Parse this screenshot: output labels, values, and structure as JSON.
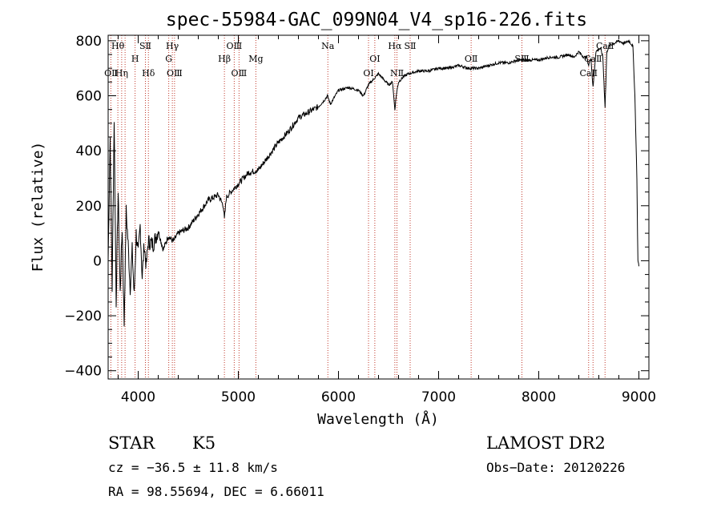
{
  "chart_data": {
    "type": "line",
    "title": "spec-55984-GAC_099N04_V4_sp16-226.fits",
    "xlabel": "Wavelength (Å)",
    "ylabel": "Flux (relative)",
    "xlim": [
      3700,
      9100
    ],
    "ylim": [
      -430,
      820
    ],
    "xticks": [
      4000,
      5000,
      6000,
      7000,
      8000,
      9000
    ],
    "yticks": [
      -400,
      -200,
      0,
      200,
      400,
      600,
      800
    ],
    "ytick_labels": [
      "−400",
      "−200",
      "0",
      "200",
      "400",
      "600",
      "800"
    ],
    "grid": false,
    "series": [
      {
        "x": [
          3700,
          3720,
          3740,
          3760,
          3780,
          3800,
          3820,
          3840,
          3860,
          3880,
          3900,
          3920,
          3940,
          3960,
          3980,
          4000,
          4020,
          4040,
          4060,
          4080,
          4100,
          4150,
          4200,
          4250,
          4300,
          4350,
          4400,
          4500,
          4600,
          4700,
          4800,
          4850,
          4861,
          4880,
          4900,
          5000,
          5100,
          5200,
          5300,
          5400,
          5500,
          5600,
          5700,
          5800,
          5850,
          5890,
          5920,
          6000,
          6100,
          6200,
          6250,
          6300,
          6350,
          6400,
          6450,
          6500,
          6540,
          6563,
          6580,
          6600,
          6650,
          6700,
          6800,
          6900,
          7000,
          7100,
          7200,
          7300,
          7400,
          7500,
          7600,
          7700,
          7800,
          7900,
          8000,
          8100,
          8200,
          8300,
          8350,
          8400,
          8450,
          8480,
          8498,
          8520,
          8542,
          8570,
          8600,
          8620,
          8640,
          8662,
          8680,
          8700,
          8750,
          8800,
          8850,
          8900,
          8940,
          8960,
          8980,
          8990,
          9000
        ],
        "y": [
          0,
          450,
          -100,
          520,
          -150,
          250,
          -120,
          120,
          -230,
          180,
          60,
          -100,
          40,
          -130,
          100,
          20,
          130,
          -60,
          60,
          -20,
          70,
          60,
          110,
          40,
          90,
          70,
          100,
          120,
          170,
          220,
          240,
          200,
          150,
          230,
          240,
          280,
          320,
          330,
          380,
          430,
          470,
          520,
          540,
          560,
          580,
          600,
          570,
          620,
          630,
          620,
          600,
          640,
          660,
          680,
          660,
          640,
          650,
          550,
          610,
          650,
          670,
          680,
          690,
          690,
          700,
          700,
          710,
          700,
          700,
          710,
          720,
          720,
          730,
          730,
          730,
          740,
          740,
          750,
          740,
          760,
          740,
          740,
          710,
          740,
          630,
          760,
          770,
          770,
          740,
          560,
          760,
          780,
          790,
          800,
          790,
          800,
          780,
          600,
          300,
          0,
          -20
        ]
      }
    ],
    "emission_lines": [
      {
        "label": "OⅡ",
        "x": 3727,
        "row": 3,
        "anchor": "middle"
      },
      {
        "label": "Hη",
        "x": 3835,
        "row": 3,
        "anchor": "middle"
      },
      {
        "label": "Hθ",
        "x": 3797,
        "row": 1,
        "anchor": "middle"
      },
      {
        "label": "H",
        "x": 3969,
        "row": 2,
        "anchor": "middle"
      },
      {
        "label": "SⅡ",
        "x": 4072,
        "row": 1,
        "anchor": "middle"
      },
      {
        "label": "Hδ",
        "x": 4102,
        "row": 3,
        "anchor": "middle"
      },
      {
        "label": "Hγ",
        "x": 4341,
        "row": 1,
        "anchor": "middle"
      },
      {
        "label": "G",
        "x": 4305,
        "row": 2,
        "anchor": "middle"
      },
      {
        "label": "OⅢ",
        "x": 4363,
        "row": 3,
        "anchor": "middle"
      },
      {
        "label": "Hβ",
        "x": 4861,
        "row": 2,
        "anchor": "middle"
      },
      {
        "label": "OⅢ",
        "x": 4959,
        "row": 1,
        "anchor": "middle"
      },
      {
        "label": "OⅢ",
        "x": 5007,
        "row": 3,
        "anchor": "middle"
      },
      {
        "label": "Mg",
        "x": 5175,
        "row": 2,
        "anchor": "middle"
      },
      {
        "label": "Na",
        "x": 5894,
        "row": 1,
        "anchor": "middle"
      },
      {
        "label": "OⅠ",
        "x": 6300,
        "row": 3,
        "anchor": "middle"
      },
      {
        "label": "OⅠ",
        "x": 6363,
        "row": 2,
        "anchor": "middle"
      },
      {
        "label": "Hα",
        "x": 6563,
        "row": 1,
        "anchor": "middle"
      },
      {
        "label": "NⅡ",
        "x": 6584,
        "row": 3,
        "anchor": "middle"
      },
      {
        "label": "SⅡ",
        "x": 6716,
        "row": 1,
        "anchor": "middle"
      },
      {
        "label": "OⅡ",
        "x": 7325,
        "row": 2,
        "anchor": "middle"
      },
      {
        "label": "SⅢ",
        "x": 7832,
        "row": 2,
        "anchor": "middle"
      },
      {
        "label": "CaⅡ",
        "x": 8498,
        "row": 3,
        "anchor": "middle"
      },
      {
        "label": "CaⅡ",
        "x": 8542,
        "row": 2,
        "anchor": "middle"
      },
      {
        "label": "CaⅡ",
        "x": 8662,
        "row": 1,
        "anchor": "middle"
      }
    ],
    "line_positions": [
      3727,
      3797,
      3835,
      3869,
      3969,
      4072,
      4102,
      4305,
      4341,
      4363,
      4861,
      4959,
      5007,
      5175,
      5894,
      6300,
      6363,
      6563,
      6584,
      6716,
      7325,
      7832,
      8498,
      8542,
      8662
    ]
  },
  "info": {
    "object_class": "STAR",
    "subclass": "K5",
    "survey": "LAMOST DR2",
    "redshift": "cz = −36.5 ± 11.8 km/s",
    "obs_date": "Obs−Date: 20120226",
    "coords": "RA =  98.55694, DEC =   6.66011"
  },
  "colors": {
    "spectrum": "#000000",
    "line_markers": "#c0392b",
    "axes": "#000000"
  }
}
